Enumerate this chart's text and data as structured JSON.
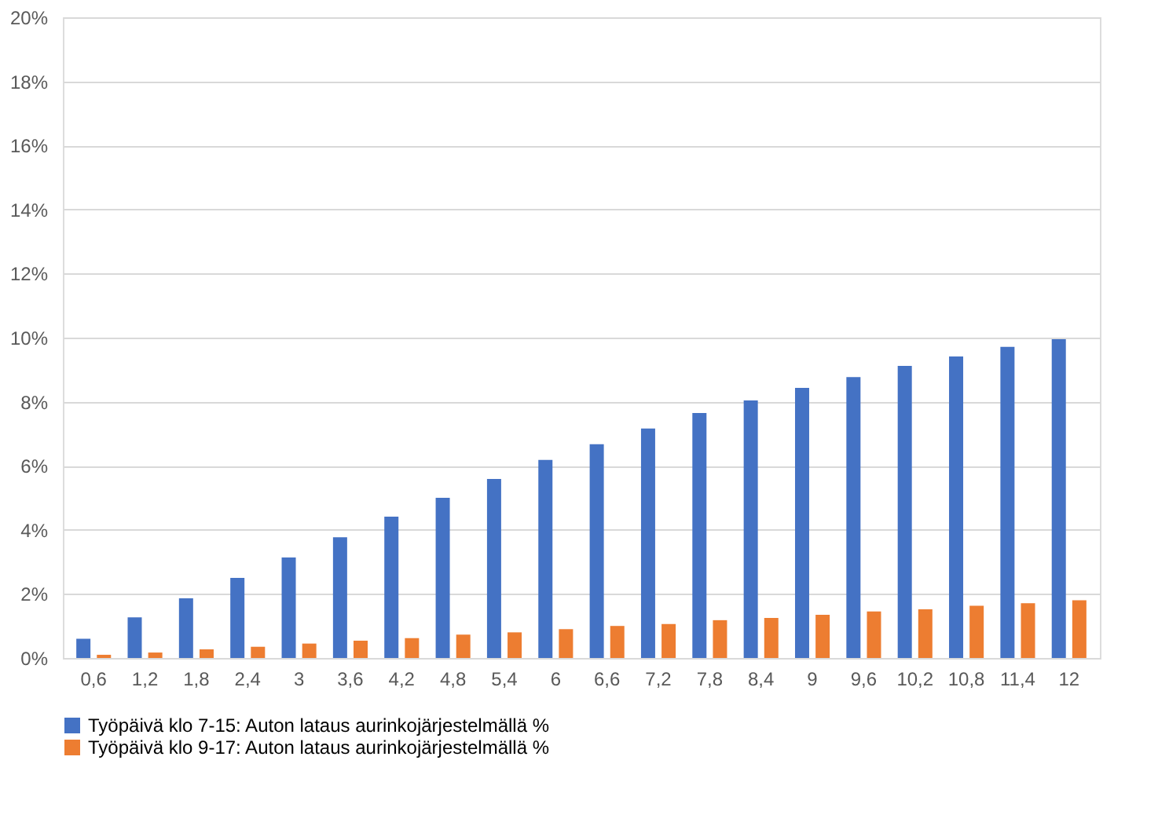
{
  "chart_data": {
    "type": "bar",
    "categories": [
      "0,6",
      "1,2",
      "1,8",
      "2,4",
      "3",
      "3,6",
      "4,2",
      "4,8",
      "5,4",
      "6",
      "6,6",
      "7,2",
      "7,8",
      "8,4",
      "9",
      "9,6",
      "10,2",
      "10,8",
      "11,4",
      "12"
    ],
    "series": [
      {
        "name": "Työpäivä klo 7-15: Auton lataus aurinkojärjestelmällä %",
        "color": "#4472c4",
        "values": [
          0.6,
          1.27,
          1.86,
          2.5,
          3.14,
          3.77,
          4.41,
          5.0,
          5.59,
          6.18,
          6.67,
          7.16,
          7.65,
          8.04,
          8.43,
          8.77,
          9.12,
          9.41,
          9.71,
          9.95
        ]
      },
      {
        "name": "Työpäivä klo 9-17: Auton lataus aurinkojärjestelmällä %",
        "color": "#ed7d31",
        "values": [
          0.1,
          0.17,
          0.27,
          0.35,
          0.45,
          0.54,
          0.62,
          0.73,
          0.8,
          0.9,
          1.0,
          1.06,
          1.18,
          1.25,
          1.35,
          1.45,
          1.52,
          1.63,
          1.71,
          1.8
        ]
      }
    ],
    "ylim": [
      0,
      20
    ],
    "yticks": [
      {
        "value": 0,
        "label": "0%"
      },
      {
        "value": 2,
        "label": "2%"
      },
      {
        "value": 4,
        "label": "4%"
      },
      {
        "value": 6,
        "label": "6%"
      },
      {
        "value": 8,
        "label": "8%"
      },
      {
        "value": 10,
        "label": "10%"
      },
      {
        "value": 12,
        "label": "12%"
      },
      {
        "value": 14,
        "label": "14%"
      },
      {
        "value": 16,
        "label": "16%"
      },
      {
        "value": 18,
        "label": "18%"
      },
      {
        "value": 20,
        "label": "20%"
      }
    ],
    "grid": "y",
    "legend": "bottom"
  }
}
